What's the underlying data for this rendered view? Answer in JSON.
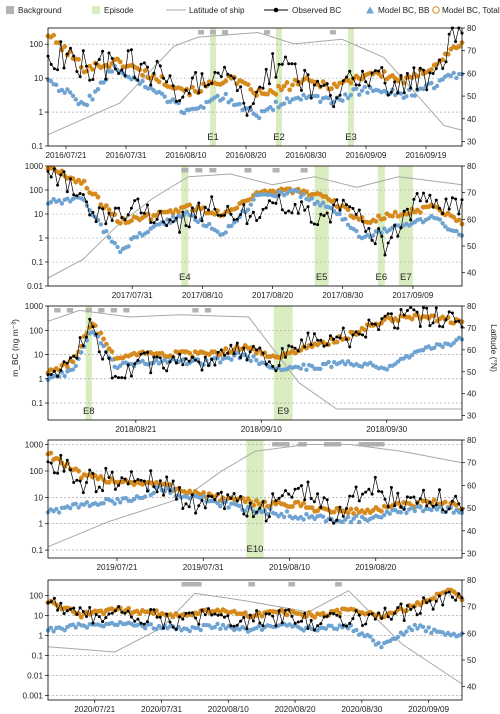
{
  "legend": {
    "background": "Background",
    "episode": "Episode",
    "latitude": "Latitude of ship",
    "observed": "Observed BC",
    "model_bb": "Model BC, BB",
    "model_total": "Model BC, Total"
  },
  "y_left_label": "m_BC (ng m⁻³)",
  "y_right_label": "Latitude (°N)",
  "colors": {
    "observed": "#000000",
    "model_bb": "#6fa3d1",
    "model_total": "#d68a1c",
    "latitude": "#a8a8a8",
    "episode": "#d9edc0",
    "background": "#b3b3b3",
    "grid": "#999999"
  },
  "chart_data": [
    {
      "type": "line",
      "panel": "2016",
      "yscale": "log",
      "ylim": [
        0.1,
        300
      ],
      "yticks": [
        "0.1",
        "1",
        "10",
        "100"
      ],
      "latlim": [
        28,
        80
      ],
      "lat_ticks": [
        "30",
        "40",
        "50",
        "60",
        "70",
        "80"
      ],
      "xlim": [
        "2016-07-18",
        "2016-09-25"
      ],
      "xticks": [
        "2016/07/21",
        "2016/07/31",
        "2016/08/10",
        "2016/08/20",
        "2016/08/30",
        "2016/09/09",
        "2016/09/19"
      ],
      "episodes": [
        {
          "label": "E1",
          "start": "2016-08-14",
          "end": "2016-08-15"
        },
        {
          "label": "E2",
          "start": "2016-08-25",
          "end": "2016-08-26"
        },
        {
          "label": "E3",
          "start": "2016-09-06",
          "end": "2016-09-07"
        }
      ],
      "background_periods": [
        [
          "2016-08-12",
          "2016-08-13"
        ],
        [
          "2016-08-14",
          "2016-08-15"
        ],
        [
          "2016-08-16",
          "2016-08-17"
        ],
        [
          "2016-08-23",
          "2016-08-24"
        ],
        [
          "2016-09-03",
          "2016-09-04"
        ]
      ],
      "latitude": {
        "x": [
          "2016-07-18",
          "2016-07-30",
          "2016-08-08",
          "2016-08-12",
          "2016-08-22",
          "2016-08-28",
          "2016-09-05",
          "2016-09-12",
          "2016-09-22",
          "2016-09-25"
        ],
        "y": [
          33,
          47,
          72,
          76,
          78,
          73,
          75,
          67,
          37,
          35
        ]
      },
      "observed": {
        "x": [
          "2016-07-18",
          "2016-07-25",
          "2016-07-31",
          "2016-08-05",
          "2016-08-10",
          "2016-08-15",
          "2016-08-20",
          "2016-08-25",
          "2016-08-30",
          "2016-09-04",
          "2016-09-09",
          "2016-09-14",
          "2016-09-19",
          "2016-09-24"
        ],
        "y": [
          60,
          20,
          30,
          12,
          3,
          20,
          2,
          30,
          8,
          3,
          15,
          6,
          10,
          200
        ]
      },
      "model_bb": {
        "x": [
          "2016-07-18",
          "2016-07-24",
          "2016-07-29",
          "2016-08-04",
          "2016-08-10",
          "2016-08-16",
          "2016-08-22",
          "2016-08-28",
          "2016-09-03",
          "2016-09-09",
          "2016-09-15",
          "2016-09-20",
          "2016-09-25"
        ],
        "y": [
          10,
          1.5,
          20,
          5,
          1,
          3,
          0.8,
          3,
          2,
          5,
          3,
          6,
          15
        ]
      },
      "model_total": {
        "x": [
          "2016-07-18",
          "2016-07-24",
          "2016-07-30",
          "2016-08-05",
          "2016-08-11",
          "2016-08-17",
          "2016-08-23",
          "2016-08-29",
          "2016-09-04",
          "2016-09-10",
          "2016-09-16",
          "2016-09-21",
          "2016-09-25"
        ],
        "y": [
          200,
          20,
          30,
          10,
          4,
          10,
          3,
          8,
          6,
          15,
          8,
          30,
          120
        ]
      }
    },
    {
      "type": "line",
      "panel": "2017",
      "yscale": "log",
      "ylim": [
        0.01,
        1000
      ],
      "yticks": [
        "0.01",
        "0.1",
        "1",
        "10",
        "100",
        "1000"
      ],
      "latlim": [
        35,
        80
      ],
      "lat_ticks": [
        "40",
        "50",
        "60",
        "70",
        "80"
      ],
      "xlim": [
        "2017-07-19",
        "2017-09-16"
      ],
      "xticks": [
        "2017/07/31",
        "2017/08/10",
        "2017/08/20",
        "2017/08/30",
        "2017/09/09"
      ],
      "episodes": [
        {
          "label": "E4",
          "start": "2017-08-07",
          "end": "2017-08-08"
        },
        {
          "label": "E5",
          "start": "2017-08-26",
          "end": "2017-08-28"
        },
        {
          "label": "E6",
          "start": "2017-09-04",
          "end": "2017-09-05"
        },
        {
          "label": "E7",
          "start": "2017-09-07",
          "end": "2017-09-09"
        }
      ],
      "background_periods": [
        [
          "2017-08-07",
          "2017-08-08"
        ],
        [
          "2017-08-09",
          "2017-08-10"
        ],
        [
          "2017-08-11",
          "2017-08-12"
        ],
        [
          "2017-08-16",
          "2017-08-17"
        ],
        [
          "2017-08-20",
          "2017-08-21"
        ],
        [
          "2017-08-24",
          "2017-08-25"
        ]
      ],
      "latitude": {
        "x": [
          "2017-07-19",
          "2017-07-24",
          "2017-07-29",
          "2017-08-03",
          "2017-08-08",
          "2017-08-14",
          "2017-08-20",
          "2017-08-26",
          "2017-09-01",
          "2017-09-07",
          "2017-09-16"
        ],
        "y": [
          38,
          45,
          58,
          68,
          76,
          77,
          73,
          76,
          72,
          76,
          73
        ]
      },
      "observed": {
        "x": [
          "2017-07-19",
          "2017-07-23",
          "2017-07-27",
          "2017-08-01",
          "2017-08-06",
          "2017-08-11",
          "2017-08-16",
          "2017-08-21",
          "2017-08-26",
          "2017-08-31",
          "2017-09-05",
          "2017-09-10",
          "2017-09-16"
        ],
        "y": [
          800,
          100,
          5,
          20,
          3,
          20,
          10,
          30,
          8,
          20,
          0.5,
          40,
          20
        ]
      },
      "model_bb": {
        "x": [
          "2017-07-19",
          "2017-07-24",
          "2017-07-29",
          "2017-08-03",
          "2017-08-08",
          "2017-08-13",
          "2017-08-18",
          "2017-08-23",
          "2017-08-28",
          "2017-09-02",
          "2017-09-07",
          "2017-09-12",
          "2017-09-16"
        ],
        "y": [
          30,
          40,
          0.3,
          3,
          10,
          1.5,
          60,
          80,
          20,
          1,
          3,
          8,
          1
        ]
      },
      "model_total": {
        "x": [
          "2017-07-19",
          "2017-07-24",
          "2017-07-29",
          "2017-08-03",
          "2017-08-08",
          "2017-08-13",
          "2017-08-18",
          "2017-08-23",
          "2017-08-28",
          "2017-09-02",
          "2017-09-07",
          "2017-09-12",
          "2017-09-16"
        ],
        "y": [
          900,
          200,
          5,
          8,
          20,
          10,
          80,
          100,
          40,
          5,
          10,
          20,
          5
        ]
      }
    },
    {
      "type": "line",
      "panel": "2018",
      "yscale": "log",
      "ylim": [
        0.02,
        1000
      ],
      "yticks": [
        "0.1",
        "1",
        "10",
        "100",
        "1000"
      ],
      "latlim": [
        28,
        80
      ],
      "lat_ticks": [
        "30",
        "40",
        "50",
        "60",
        "70",
        "80"
      ],
      "xlim": [
        "2018-08-07",
        "2018-10-12"
      ],
      "xticks": [
        "2018/08/21",
        "2018/09/10",
        "2018/09/30"
      ],
      "episodes": [
        {
          "label": "E8",
          "start": "2018-08-13",
          "end": "2018-08-14"
        },
        {
          "label": "E9",
          "start": "2018-09-12",
          "end": "2018-09-15"
        }
      ],
      "background_periods": [
        [
          "2018-08-08",
          "2018-08-09"
        ],
        [
          "2018-08-10",
          "2018-08-11"
        ],
        [
          "2018-08-13",
          "2018-08-14"
        ],
        [
          "2018-08-15",
          "2018-08-16"
        ],
        [
          "2018-08-17",
          "2018-08-18"
        ],
        [
          "2018-08-19",
          "2018-08-20"
        ],
        [
          "2018-08-30",
          "2018-08-31"
        ],
        [
          "2018-09-01",
          "2018-09-02"
        ]
      ],
      "latitude": {
        "x": [
          "2018-08-07",
          "2018-08-12",
          "2018-08-20",
          "2018-08-28",
          "2018-09-08",
          "2018-09-16",
          "2018-09-22",
          "2018-10-12"
        ],
        "y": [
          73,
          78,
          75,
          76,
          75,
          45,
          33,
          33
        ]
      },
      "observed": {
        "x": [
          "2018-08-07",
          "2018-08-11",
          "2018-08-14",
          "2018-08-18",
          "2018-08-22",
          "2018-09-02",
          "2018-09-07",
          "2018-09-12",
          "2018-09-18",
          "2018-09-24",
          "2018-09-30",
          "2018-10-06",
          "2018-10-12"
        ],
        "y": [
          2,
          5,
          150,
          1,
          5,
          3,
          20,
          5,
          40,
          50,
          300,
          400,
          300
        ]
      },
      "model_bb": {
        "x": [
          "2018-08-07",
          "2018-08-11",
          "2018-08-14",
          "2018-08-18",
          "2018-08-22",
          "2018-09-02",
          "2018-09-07",
          "2018-09-12",
          "2018-09-18",
          "2018-09-24",
          "2018-09-30",
          "2018-10-06",
          "2018-10-12"
        ],
        "y": [
          1,
          2,
          100,
          3,
          5,
          5,
          10,
          3,
          3,
          5,
          3,
          15,
          40
        ]
      },
      "model_total": {
        "x": [
          "2018-08-07",
          "2018-08-11",
          "2018-08-14",
          "2018-08-18",
          "2018-08-22",
          "2018-09-02",
          "2018-09-07",
          "2018-09-12",
          "2018-09-18",
          "2018-09-24",
          "2018-09-30",
          "2018-10-06",
          "2018-10-12"
        ],
        "y": [
          2,
          5,
          200,
          6,
          10,
          10,
          20,
          8,
          20,
          60,
          300,
          400,
          200
        ]
      }
    },
    {
      "type": "line",
      "panel": "2019",
      "yscale": "log",
      "ylim": [
        0.05,
        1500
      ],
      "yticks": [
        "0.1",
        "1",
        "10",
        "100",
        "1000"
      ],
      "latlim": [
        28,
        80
      ],
      "lat_ticks": [
        "30",
        "40",
        "50",
        "60",
        "70",
        "80"
      ],
      "xlim": [
        "2019-07-13",
        "2019-08-30"
      ],
      "xticks": [
        "2019/07/21",
        "2019/07/31",
        "2019/08/10",
        "2019/08/20"
      ],
      "episodes": [
        {
          "label": "E10",
          "start": "2019-08-05",
          "end": "2019-08-07"
        }
      ],
      "background_periods": [
        [
          "2019-08-08",
          "2019-08-09"
        ],
        [
          "2019-08-09",
          "2019-08-10"
        ],
        [
          "2019-08-11",
          "2019-08-12"
        ],
        [
          "2019-08-14",
          "2019-08-16"
        ],
        [
          "2019-08-18",
          "2019-08-21"
        ]
      ],
      "latitude": {
        "x": [
          "2019-07-13",
          "2019-07-20",
          "2019-07-29",
          "2019-08-02",
          "2019-08-06",
          "2019-08-12",
          "2019-08-17",
          "2019-08-23",
          "2019-08-30"
        ],
        "y": [
          33,
          44,
          55,
          66,
          75,
          78,
          78,
          75,
          70
        ]
      },
      "observed": {
        "x": [
          "2019-07-13",
          "2019-07-17",
          "2019-07-22",
          "2019-07-26",
          "2019-07-30",
          "2019-08-03",
          "2019-08-07",
          "2019-08-11",
          "2019-08-15",
          "2019-08-19",
          "2019-08-23",
          "2019-08-27",
          "2019-08-30"
        ],
        "y": [
          300,
          40,
          60,
          30,
          5,
          10,
          3,
          30,
          2,
          40,
          5,
          10,
          4
        ]
      },
      "model_bb": {
        "x": [
          "2019-07-13",
          "2019-07-17",
          "2019-07-22",
          "2019-07-26",
          "2019-07-30",
          "2019-08-03",
          "2019-08-07",
          "2019-08-11",
          "2019-08-15",
          "2019-08-19",
          "2019-08-23",
          "2019-08-27",
          "2019-08-30"
        ],
        "y": [
          3,
          5,
          8,
          20,
          10,
          5,
          3,
          2,
          1.5,
          1.5,
          3,
          4,
          3
        ]
      },
      "model_total": {
        "x": [
          "2019-07-13",
          "2019-07-17",
          "2019-07-22",
          "2019-07-26",
          "2019-07-30",
          "2019-08-03",
          "2019-08-07",
          "2019-08-11",
          "2019-08-15",
          "2019-08-19",
          "2019-08-23",
          "2019-08-27",
          "2019-08-30"
        ],
        "y": [
          500,
          60,
          40,
          30,
          15,
          8,
          6,
          5,
          3,
          3,
          5,
          6,
          4
        ]
      }
    },
    {
      "type": "line",
      "panel": "2020",
      "yscale": "log",
      "ylim": [
        0.0006,
        600
      ],
      "yticks": [
        "0.001",
        "0.01",
        "0.1",
        "1",
        "10",
        "100"
      ],
      "latlim": [
        35,
        80
      ],
      "lat_ticks": [
        "40",
        "50",
        "60",
        "70",
        "80"
      ],
      "xlim": [
        "2020-07-14",
        "2020-09-14"
      ],
      "xticks": [
        "2020/07/21",
        "2020/07/31",
        "2020/08/10",
        "2020/08/20",
        "2020/08/30",
        "2020/09/09"
      ],
      "episodes": [],
      "background_periods": [
        [
          "2020-08-03",
          "2020-08-06"
        ],
        [
          "2020-08-13",
          "2020-08-14"
        ],
        [
          "2020-08-19",
          "2020-08-20"
        ],
        [
          "2020-08-26",
          "2020-08-27"
        ]
      ],
      "latitude": {
        "x": [
          "2020-07-14",
          "2020-07-24",
          "2020-07-31",
          "2020-08-05",
          "2020-08-13",
          "2020-08-22",
          "2020-08-28",
          "2020-09-05",
          "2020-09-14"
        ],
        "y": [
          55,
          53,
          62,
          75,
          72,
          68,
          76,
          56,
          41
        ]
      },
      "observed": {
        "x": [
          "2020-07-14",
          "2020-07-19",
          "2020-07-24",
          "2020-07-29",
          "2020-08-03",
          "2020-08-08",
          "2020-08-13",
          "2020-08-18",
          "2020-08-23",
          "2020-08-28",
          "2020-09-02",
          "2020-09-07",
          "2020-09-12",
          "2020-09-14"
        ],
        "y": [
          60,
          10,
          15,
          8,
          5,
          10,
          6,
          8,
          5,
          8,
          10,
          20,
          100,
          50
        ]
      },
      "model_bb": {
        "x": [
          "2020-07-14",
          "2020-07-19",
          "2020-07-24",
          "2020-07-29",
          "2020-08-03",
          "2020-08-08",
          "2020-08-13",
          "2020-08-18",
          "2020-08-23",
          "2020-08-28",
          "2020-09-02",
          "2020-09-07",
          "2020-09-12",
          "2020-09-14"
        ],
        "y": [
          2,
          3,
          4,
          3,
          2,
          3,
          2,
          3,
          2,
          3,
          0.3,
          3,
          1,
          1
        ]
      },
      "model_total": {
        "x": [
          "2020-07-14",
          "2020-07-19",
          "2020-07-24",
          "2020-07-29",
          "2020-08-03",
          "2020-08-08",
          "2020-08-13",
          "2020-08-18",
          "2020-08-23",
          "2020-08-28",
          "2020-09-02",
          "2020-09-07",
          "2020-09-12",
          "2020-09-14"
        ],
        "y": [
          50,
          10,
          20,
          15,
          10,
          20,
          10,
          15,
          10,
          20,
          10,
          30,
          200,
          80
        ]
      }
    }
  ]
}
